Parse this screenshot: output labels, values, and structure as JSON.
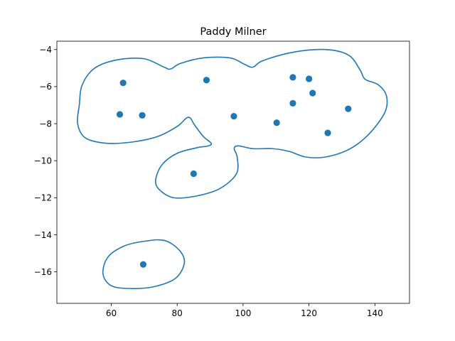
{
  "chart_data": {
    "type": "scatter",
    "title": "Paddy Milner",
    "xlabel": "",
    "ylabel": "",
    "xlim": [
      43.5,
      150.5
    ],
    "ylim": [
      -17.7,
      -3.55
    ],
    "xticks": [
      60,
      80,
      100,
      120,
      140
    ],
    "yticks": [
      -16,
      -14,
      -12,
      -10,
      -8,
      -6,
      -4
    ],
    "grid": false,
    "colors": {
      "series": "#1f77b4",
      "axis": "#000000",
      "background": "#ffffff"
    },
    "points": [
      {
        "x": 63.6,
        "y": -5.8
      },
      {
        "x": 62.6,
        "y": -7.5
      },
      {
        "x": 69.4,
        "y": -7.55
      },
      {
        "x": 88.9,
        "y": -5.65
      },
      {
        "x": 97.2,
        "y": -7.6
      },
      {
        "x": 110.2,
        "y": -7.95
      },
      {
        "x": 115.1,
        "y": -5.5
      },
      {
        "x": 120.0,
        "y": -5.58
      },
      {
        "x": 121.1,
        "y": -6.35
      },
      {
        "x": 115.1,
        "y": -6.9
      },
      {
        "x": 131.9,
        "y": -7.2
      },
      {
        "x": 125.7,
        "y": -8.5
      },
      {
        "x": 85.0,
        "y": -10.7
      },
      {
        "x": 69.7,
        "y": -15.6
      }
    ],
    "contours": [
      [
        [
          50.3,
          -7.0
        ],
        [
          51.2,
          -5.9
        ],
        [
          55.0,
          -5.0
        ],
        [
          62.0,
          -4.55
        ],
        [
          70.0,
          -4.5
        ],
        [
          76.0,
          -4.95
        ],
        [
          78.0,
          -5.05
        ],
        [
          81.0,
          -4.75
        ],
        [
          88.0,
          -4.45
        ],
        [
          96.0,
          -4.45
        ],
        [
          100.5,
          -4.8
        ],
        [
          103.0,
          -4.95
        ],
        [
          106.0,
          -4.6
        ],
        [
          115.0,
          -4.15
        ],
        [
          125.0,
          -4.0
        ],
        [
          132.0,
          -4.3
        ],
        [
          135.5,
          -5.1
        ],
        [
          137.0,
          -5.6
        ],
        [
          141.0,
          -5.9
        ],
        [
          143.5,
          -6.5
        ],
        [
          143.0,
          -7.4
        ],
        [
          138.0,
          -8.6
        ],
        [
          132.0,
          -9.4
        ],
        [
          125.0,
          -9.8
        ],
        [
          119.0,
          -9.8
        ],
        [
          114.0,
          -9.5
        ],
        [
          109.0,
          -9.35
        ],
        [
          103.0,
          -9.35
        ],
        [
          98.5,
          -9.2
        ],
        [
          97.3,
          -9.35
        ],
        [
          98.2,
          -9.8
        ],
        [
          98.0,
          -10.7
        ],
        [
          93.0,
          -11.5
        ],
        [
          86.0,
          -11.9
        ],
        [
          79.0,
          -12.0
        ],
        [
          74.5,
          -11.55
        ],
        [
          73.5,
          -11.0
        ],
        [
          75.5,
          -10.2
        ],
        [
          80.0,
          -9.6
        ],
        [
          86.0,
          -9.3
        ],
        [
          89.5,
          -9.2
        ],
        [
          90.3,
          -9.05
        ],
        [
          88.0,
          -8.7
        ],
        [
          85.2,
          -8.05
        ],
        [
          84.0,
          -7.7
        ],
        [
          82.8,
          -7.7
        ],
        [
          80.0,
          -8.15
        ],
        [
          74.0,
          -8.7
        ],
        [
          66.0,
          -9.0
        ],
        [
          58.0,
          -9.05
        ],
        [
          52.0,
          -8.75
        ],
        [
          49.8,
          -8.0
        ]
      ],
      [
        [
          57.5,
          -16.1
        ],
        [
          59.0,
          -15.2
        ],
        [
          64.0,
          -14.6
        ],
        [
          70.0,
          -14.35
        ],
        [
          76.0,
          -14.3
        ],
        [
          80.5,
          -14.8
        ],
        [
          82.2,
          -15.5
        ],
        [
          79.5,
          -16.35
        ],
        [
          73.0,
          -16.8
        ],
        [
          66.0,
          -16.9
        ],
        [
          60.0,
          -16.75
        ]
      ]
    ]
  }
}
